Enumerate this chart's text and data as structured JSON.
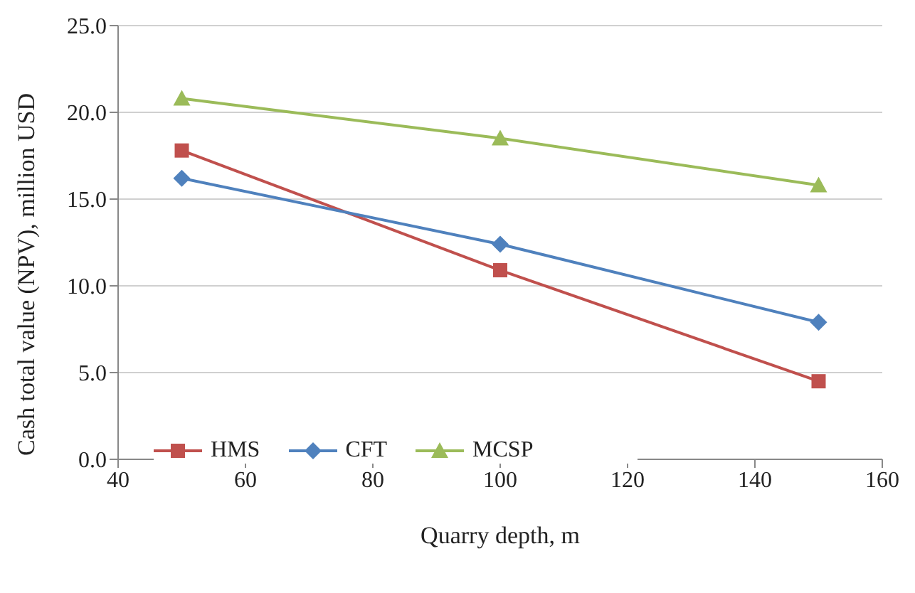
{
  "chart_data": {
    "type": "line",
    "xlabel": "Quarry depth, m",
    "ylabel": "Cash total value  (NPV), million USD",
    "x": [
      50,
      100,
      150
    ],
    "series": [
      {
        "name": "HMS",
        "color": "#c0504d",
        "marker": "square",
        "values": [
          17.8,
          10.9,
          4.5
        ]
      },
      {
        "name": "CFT",
        "color": "#4f81bd",
        "marker": "diamond",
        "values": [
          16.2,
          12.4,
          7.9
        ]
      },
      {
        "name": "MCSP",
        "color": "#9bbb59",
        "marker": "triangle",
        "values": [
          20.8,
          18.5,
          15.8
        ]
      }
    ],
    "xlim": [
      40,
      160
    ],
    "xticks": [
      40,
      60,
      80,
      100,
      120,
      140,
      160
    ],
    "ylim": [
      0,
      25
    ],
    "yticks": [
      {
        "value": 0,
        "label": "0.0"
      },
      {
        "value": 5,
        "label": "5.0"
      },
      {
        "value": 10,
        "label": "10.0"
      },
      {
        "value": 15,
        "label": "15.0"
      },
      {
        "value": 20,
        "label": "20.0"
      },
      {
        "value": 25,
        "label": "25.0"
      }
    ],
    "grid": "y",
    "legend": "bottom left"
  }
}
